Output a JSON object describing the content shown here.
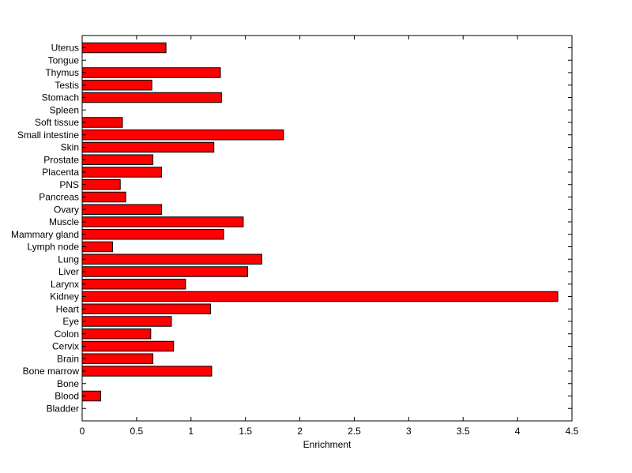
{
  "chart_data": {
    "type": "bar",
    "orientation": "horizontal",
    "title": "",
    "xlabel": "Enrichment",
    "ylabel": "",
    "xlim": [
      0,
      4.5
    ],
    "xticks": [
      "0",
      "0.5",
      "1",
      "1.5",
      "2",
      "2.5",
      "3",
      "3.5",
      "4",
      "4.5"
    ],
    "grid": false,
    "bar_color": "#ff0000",
    "bar_edge_color": "#000000",
    "categories": [
      "Uterus",
      "Tongue",
      "Thymus",
      "Testis",
      "Stomach",
      "Spleen",
      "Soft tissue",
      "Small intestine",
      "Skin",
      "Prostate",
      "Placenta",
      "PNS",
      "Pancreas",
      "Ovary",
      "Muscle",
      "Mammary gland",
      "Lymph node",
      "Lung",
      "Liver",
      "Larynx",
      "Kidney",
      "Heart",
      "Eye",
      "Colon",
      "Cervix",
      "Brain",
      "Bone marrow",
      "Bone",
      "Blood",
      "Bladder"
    ],
    "values": [
      0.77,
      0,
      1.27,
      0.64,
      1.28,
      0,
      0.37,
      1.85,
      1.21,
      0.65,
      0.73,
      0.35,
      0.4,
      0.73,
      1.48,
      1.3,
      0.28,
      1.65,
      1.52,
      0.95,
      4.37,
      1.18,
      0.82,
      0.63,
      0.84,
      0.65,
      1.19,
      0,
      0.17,
      0
    ]
  }
}
